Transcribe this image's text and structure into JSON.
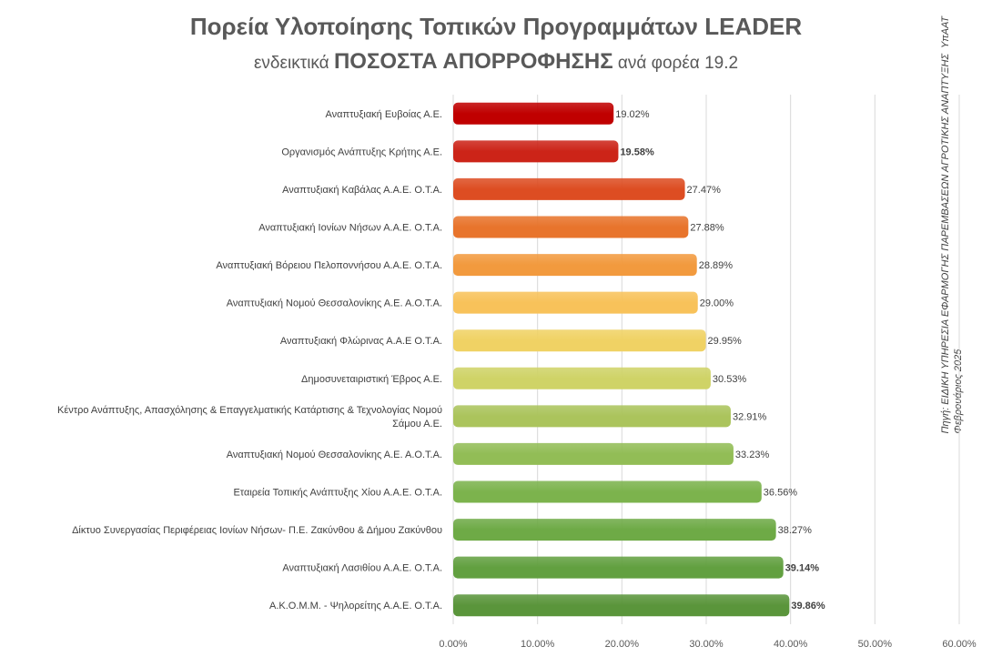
{
  "chart_data": {
    "type": "bar",
    "orientation": "horizontal",
    "title": "Πορεία Υλοποίησης Τοπικών Προγραμμάτων  LEADER",
    "subtitle": {
      "prefix": "ενδεικτικά ",
      "emphasis": "ΠΟΣΟΣΤΑ ΑΠΟΡΡΟΦΗΣΗΣ",
      "suffix": " ανά φορέα 19.2"
    },
    "source_note": "Πηγή: ΕΙΔΙΚΗ ΥΠΗΡΕΣΙΑ ΕΦΑΡΜΟΓΗΣ ΠΑΡΕΜΒΑΣΕΩΝ ΑΓΡΟΤΙΚΗΣ ΑΝΑΠΤΥΞΗΣ  ΥπΑΑΤ\nΦεβρουάριος 2025",
    "categories": [
      [
        "Αναπτυξιακή Ευβοίας Α.Ε."
      ],
      [
        "Οργανισμός Ανάπτυξης Κρήτης Α.Ε."
      ],
      [
        "Αναπτυξιακή Καβάλας Α.Α.Ε. Ο.Τ.Α."
      ],
      [
        "Αναπτυξιακή Ιονίων Νήσων Α.Α.Ε. Ο.Τ.Α."
      ],
      [
        "Αναπτυξιακή Βόρειου Πελοποννήσου Α.Α.Ε. Ο.Τ.Α."
      ],
      [
        "Αναπτυξιακή Νομού Θεσσαλονίκης Α.Ε. Α.Ο.Τ.Α."
      ],
      [
        "Αναπτυξιακή Φλώρινας Α.Α.Ε Ο.Τ.Α."
      ],
      [
        "Δημοσυνεταιριστική Έβρος Α.Ε."
      ],
      [
        "Κέντρο Ανάπτυξης, Απασχόλησης & Επαγγελματικής Κατάρτισης & Τεχνολογίας Νομού",
        "Σάμου Α.Ε."
      ],
      [
        "Αναπτυξιακή Νομού Θεσσαλονίκης Α.Ε. Α.Ο.Τ.Α."
      ],
      [
        "Εταιρεία Τοπικής Ανάπτυξης Χίου Α.Α.Ε. Ο.Τ.Α."
      ],
      [
        "Δίκτυο Συνεργασίας Περιφέρειας Ιονίων Νήσων- Π.Ε. Ζακύνθου & Δήμου Ζακύνθου"
      ],
      [
        "Αναπτυξιακή Λασιθίου Α.Α.Ε. Ο.Τ.Α."
      ],
      [
        "Α.Κ.Ο.Μ.Μ. - Ψηλορείτης Α.Α.Ε. Ο.Τ.Α."
      ]
    ],
    "values": [
      19.02,
      19.58,
      27.47,
      27.88,
      28.89,
      29.0,
      29.95,
      30.53,
      32.91,
      33.23,
      36.56,
      38.27,
      39.14,
      39.86
    ],
    "value_labels": [
      "19.02%",
      "19.58%",
      "27.47%",
      "27.88%",
      "28.89%",
      "29.00%",
      "29.95%",
      "30.53%",
      "32.91%",
      "33.23%",
      "36.56%",
      "38.27%",
      "39.14%",
      "39.86%"
    ],
    "bold_labels": [
      1,
      12,
      13
    ],
    "colors": [
      "#c00000",
      "#cc2418",
      "#dd4d22",
      "#e8742c",
      "#f29a3e",
      "#f8c25a",
      "#f0d264",
      "#cfd367",
      "#abc45c",
      "#92bd56",
      "#7cb34d",
      "#6eaa46",
      "#62a040",
      "#5a953b"
    ],
    "xlim": [
      0,
      60
    ],
    "xticks": [
      "0.00%",
      "10.00%",
      "20.00%",
      "30.00%",
      "40.00%",
      "50.00%",
      "60.00%"
    ],
    "grid": true
  }
}
